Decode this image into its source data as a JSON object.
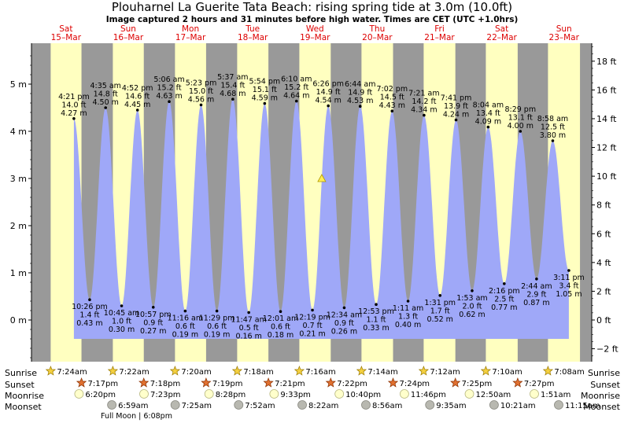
{
  "title": "Plouharnel La Guerite Tata Beach: rising  spring tide at 3.0m (10.0ft)",
  "subtitle": "Image captured 2 hours and 31 minutes before high water. Times are CET (UTC +1.0hrs)",
  "colors": {
    "night": "#999999",
    "day": "#ffffc0",
    "tide_fill": "#9fa8f8",
    "day_label": "#dd0000",
    "marker": "#ffee55"
  },
  "days": [
    {
      "dow": "Sat",
      "date": "15–Mar"
    },
    {
      "dow": "Sun",
      "date": "16–Mar"
    },
    {
      "dow": "Mon",
      "date": "17–Mar"
    },
    {
      "dow": "Tue",
      "date": "18–Mar"
    },
    {
      "dow": "Wed",
      "date": "19–Mar"
    },
    {
      "dow": "Thu",
      "date": "20–Mar"
    },
    {
      "dow": "Fri",
      "date": "21–Mar"
    },
    {
      "dow": "Sat",
      "date": "22–Mar"
    },
    {
      "dow": "Sun",
      "date": "23–Mar"
    }
  ],
  "chart_data": {
    "type": "area",
    "title": "Plouharnel La Guerite Tata Beach: rising  spring tide at 3.0m (10.0ft)",
    "x_unit": "days from 15-Mar 00:00 CET",
    "y_left_unit": "m",
    "y_right_unit": "ft",
    "y_left_ticks": [
      "5 m",
      "4 m",
      "3 m",
      "2 m",
      "1 m",
      "0 m"
    ],
    "y_left_values": [
      5,
      4,
      3,
      2,
      1,
      0
    ],
    "y_right_ticks": [
      "18 ft",
      "16 ft",
      "14 ft",
      "12 ft",
      "10 ft",
      "8 ft",
      "6 ft",
      "4 ft",
      "2 ft",
      "0 ft",
      "−2 ft"
    ],
    "y_right_values": [
      18,
      16,
      14,
      12,
      10,
      8,
      6,
      4,
      2,
      0,
      -2
    ],
    "ylim_m": [
      -0.85,
      5.85
    ],
    "current": {
      "time": "19-Mar 15:55",
      "height_m": 3.0
    },
    "tides": [
      {
        "kind": "high",
        "time": "4:21 pm",
        "ft": "14.0 ft",
        "m": "4.27 m",
        "hour": 16.35,
        "h": 4.27
      },
      {
        "kind": "low",
        "time": "10:26 pm",
        "ft": "1.4 ft",
        "m": "0.43 m",
        "hour": 22.43,
        "h": 0.43
      },
      {
        "kind": "high",
        "time": "4:35 am",
        "ft": "14.8 ft",
        "m": "4.50 m",
        "hour": 28.58,
        "h": 4.5
      },
      {
        "kind": "low",
        "time": "10:45 am",
        "ft": "1.0 ft",
        "m": "0.30 m",
        "hour": 34.75,
        "h": 0.3
      },
      {
        "kind": "high",
        "time": "4:52 pm",
        "ft": "14.6 ft",
        "m": "4.45 m",
        "hour": 40.87,
        "h": 4.45
      },
      {
        "kind": "low",
        "time": "10:57 pm",
        "ft": "0.9 ft",
        "m": "0.27 m",
        "hour": 46.95,
        "h": 0.27
      },
      {
        "kind": "high",
        "time": "5:06 am",
        "ft": "15.2 ft",
        "m": "4.63 m",
        "hour": 53.1,
        "h": 4.63
      },
      {
        "kind": "low",
        "time": "11:16 am",
        "ft": "0.6 ft",
        "m": "0.19 m",
        "hour": 59.27,
        "h": 0.19
      },
      {
        "kind": "high",
        "time": "5:23 pm",
        "ft": "15.0 ft",
        "m": "4.56 m",
        "hour": 65.38,
        "h": 4.56
      },
      {
        "kind": "low",
        "time": "11:29 pm",
        "ft": "0.6 ft",
        "m": "0.19 m",
        "hour": 71.48,
        "h": 0.19
      },
      {
        "kind": "high",
        "time": "5:37 am",
        "ft": "15.4 ft",
        "m": "4.68 m",
        "hour": 77.62,
        "h": 4.68
      },
      {
        "kind": "low",
        "time": "11:47 am",
        "ft": "0.5 ft",
        "m": "0.16 m",
        "hour": 83.78,
        "h": 0.16
      },
      {
        "kind": "high",
        "time": "5:54 pm",
        "ft": "15.1 ft",
        "m": "4.59 m",
        "hour": 89.9,
        "h": 4.59
      },
      {
        "kind": "low",
        "time": "12:01 am",
        "ft": "0.6 ft",
        "m": "0.18 m",
        "hour": 96.02,
        "h": 0.18
      },
      {
        "kind": "high",
        "time": "6:10 am",
        "ft": "15.2 ft",
        "m": "4.64 m",
        "hour": 102.17,
        "h": 4.64
      },
      {
        "kind": "low",
        "time": "12:19 pm",
        "ft": "0.7 ft",
        "m": "0.21 m",
        "hour": 108.32,
        "h": 0.21
      },
      {
        "kind": "high",
        "time": "6:26 pm",
        "ft": "14.9 ft",
        "m": "4.54 m",
        "hour": 114.43,
        "h": 4.54
      },
      {
        "kind": "low",
        "time": "12:34 am",
        "ft": "0.9 ft",
        "m": "0.26 m",
        "hour": 120.57,
        "h": 0.26
      },
      {
        "kind": "high",
        "time": "6:44 am",
        "ft": "14.9 ft",
        "m": "4.53 m",
        "hour": 126.73,
        "h": 4.53
      },
      {
        "kind": "low",
        "time": "12:53 pm",
        "ft": "1.1 ft",
        "m": "0.33 m",
        "hour": 132.88,
        "h": 0.33
      },
      {
        "kind": "high",
        "time": "7:02 pm",
        "ft": "14.5 ft",
        "m": "4.43 m",
        "hour": 139.03,
        "h": 4.43
      },
      {
        "kind": "low",
        "time": "1:11 am",
        "ft": "1.3 ft",
        "m": "0.40 m",
        "hour": 145.18,
        "h": 0.4
      },
      {
        "kind": "high",
        "time": "7:21 am",
        "ft": "14.2 ft",
        "m": "4.34 m",
        "hour": 151.35,
        "h": 4.34
      },
      {
        "kind": "low",
        "time": "1:31 pm",
        "ft": "1.7 ft",
        "m": "0.52 m",
        "hour": 157.52,
        "h": 0.52
      },
      {
        "kind": "high",
        "time": "7:41 pm",
        "ft": "13.9 ft",
        "m": "4.24 m",
        "hour": 163.68,
        "h": 4.24
      },
      {
        "kind": "low",
        "time": "1:53 am",
        "ft": "2.0 ft",
        "m": "0.62 m",
        "hour": 169.88,
        "h": 0.62
      },
      {
        "kind": "high",
        "time": "8:04 am",
        "ft": "13.4 ft",
        "m": "4.09 m",
        "hour": 176.07,
        "h": 4.09
      },
      {
        "kind": "low",
        "time": "2:16 pm",
        "ft": "2.5 ft",
        "m": "0.77 m",
        "hour": 182.27,
        "h": 0.77
      },
      {
        "kind": "high",
        "time": "8:29 pm",
        "ft": "13.1 ft",
        "m": "4.00 m",
        "hour": 188.48,
        "h": 4.0
      },
      {
        "kind": "low",
        "time": "2:44 am",
        "ft": "2.9 ft",
        "m": "0.87 m",
        "hour": 194.73,
        "h": 0.87
      },
      {
        "kind": "high",
        "time": "8:58 am",
        "ft": "12.5 ft",
        "m": "3.80 m",
        "hour": 200.97,
        "h": 3.8
      },
      {
        "kind": "low",
        "time": "3:11 pm",
        "ft": "3.4 ft",
        "m": "1.05 m",
        "hour": 207.18,
        "h": 1.05
      }
    ],
    "sun": [
      {
        "sunrise": "7:24am",
        "sunset": "7:17pm",
        "rise_h": 7.4,
        "set_h": 19.28
      },
      {
        "sunrise": "7:22am",
        "sunset": "7:18pm",
        "rise_h": 7.37,
        "set_h": 19.3
      },
      {
        "sunrise": "7:20am",
        "sunset": "7:19pm",
        "rise_h": 7.33,
        "set_h": 19.32
      },
      {
        "sunrise": "7:18am",
        "sunset": "7:21pm",
        "rise_h": 7.3,
        "set_h": 19.35
      },
      {
        "sunrise": "7:16am",
        "sunset": "7:22pm",
        "rise_h": 7.27,
        "set_h": 19.37
      },
      {
        "sunrise": "7:14am",
        "sunset": "7:24pm",
        "rise_h": 7.23,
        "set_h": 19.4
      },
      {
        "sunrise": "7:12am",
        "sunset": "7:25pm",
        "rise_h": 7.2,
        "set_h": 19.42
      },
      {
        "sunrise": "7:10am",
        "sunset": "7:27pm",
        "rise_h": 7.17,
        "set_h": 19.45
      },
      {
        "sunrise": "7:08am",
        "sunset": null,
        "rise_h": 7.13,
        "set_h": 19.47
      }
    ],
    "moonrise": [
      {
        "time": "6:20pm",
        "hour": 18.33
      },
      {
        "time": "7:23pm",
        "hour": 43.38
      },
      {
        "time": "8:28pm",
        "hour": 68.47
      },
      {
        "time": "9:33pm",
        "hour": 93.55
      },
      {
        "time": "10:40pm",
        "hour": 118.67
      },
      {
        "time": "11:46pm",
        "hour": 143.77
      },
      {
        "time": "12:50am",
        "hour": 168.83
      },
      {
        "time": "1:51am",
        "hour": 193.85
      }
    ],
    "moonset": [
      {
        "time": "6:59am",
        "hour": 30.98
      },
      {
        "time": "7:25am",
        "hour": 55.42
      },
      {
        "time": "7:52am",
        "hour": 79.87
      },
      {
        "time": "8:22am",
        "hour": 104.37
      },
      {
        "time": "8:56am",
        "hour": 128.93
      },
      {
        "time": "9:35am",
        "hour": 153.58
      },
      {
        "time": "10:21am",
        "hour": 178.35
      },
      {
        "time": "11:15am",
        "hour": 203.25
      }
    ],
    "full_moon": "Full Moon | 6:08pm"
  },
  "row_labels": {
    "sunrise": "Sunrise",
    "sunset": "Sunset",
    "moonrise": "Moonrise",
    "moonset": "Moonset"
  }
}
